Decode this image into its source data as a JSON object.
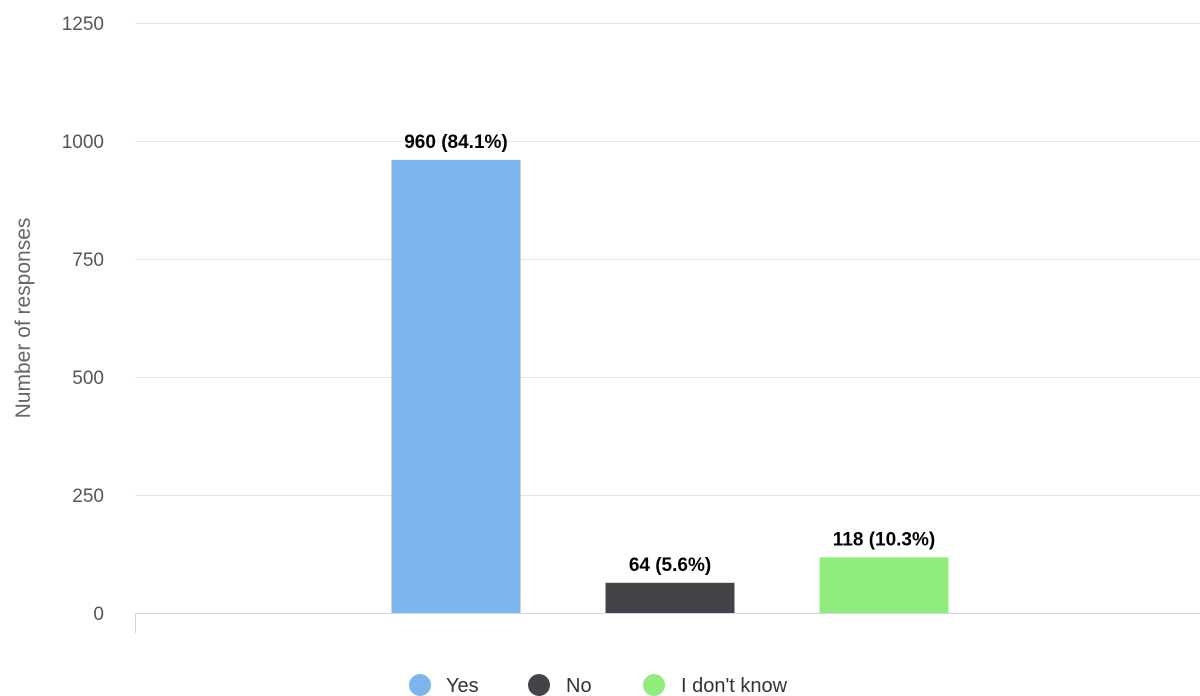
{
  "chart_data": {
    "type": "bar",
    "title": "",
    "xlabel": "",
    "ylabel": "Number of responses",
    "ylim": [
      0,
      1250
    ],
    "yticks": [
      0,
      250,
      500,
      750,
      1000,
      1250
    ],
    "grid": true,
    "legend_position": "bottom",
    "categories": [
      "Yes",
      "No",
      "I don't know"
    ],
    "values": [
      960,
      64,
      118
    ],
    "data_labels": [
      "960 (84.1%)",
      "64 (5.6%)",
      "118 (10.3%)"
    ],
    "colors": [
      "#7cb5ec",
      "#434348",
      "#90ed7d"
    ],
    "legend": [
      {
        "label": "Yes",
        "color": "#7cb5ec"
      },
      {
        "label": "No",
        "color": "#434348"
      },
      {
        "label": "I don't know",
        "color": "#90ed7d"
      }
    ]
  }
}
